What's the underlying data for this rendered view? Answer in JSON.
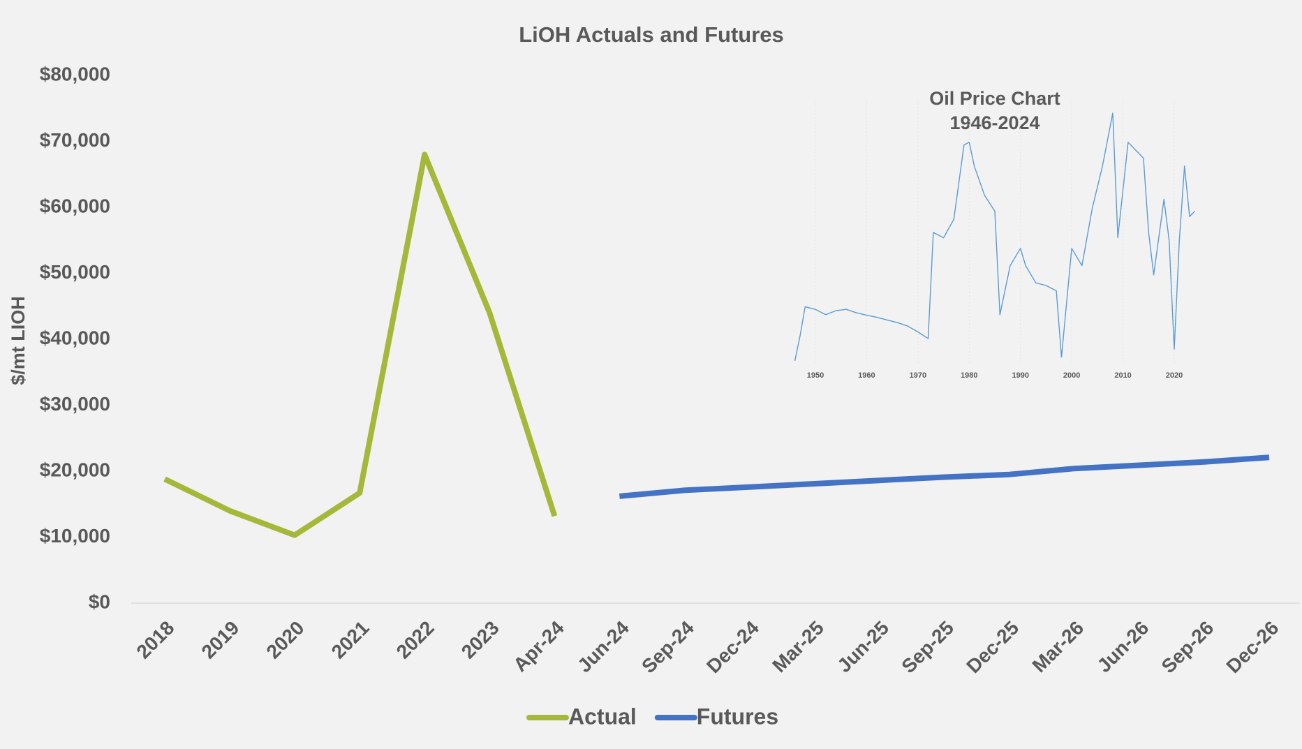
{
  "chart_data": [
    {
      "type": "line",
      "title": "LiOH Actuals and Futures",
      "y_label": "$/mt LIOH",
      "categories": [
        "2018",
        "2019",
        "2020",
        "2021",
        "2022",
        "2023",
        "Apr-24",
        "Jun-24",
        "Sep-24",
        "Dec-24",
        "Mar-25",
        "Jun-25",
        "Sep-25",
        "Dec-25",
        "Mar-26",
        "Jun-26",
        "Sep-26",
        "Dec-26"
      ],
      "series": [
        {
          "name": "Actual",
          "color": "#a5b83a",
          "values": [
            18800,
            14000,
            10300,
            16700,
            68000,
            44000,
            13200,
            null,
            null,
            null,
            null,
            null,
            null,
            null,
            null,
            null,
            null,
            null
          ]
        },
        {
          "name": "Futures",
          "color": "#4472c4",
          "values": [
            null,
            null,
            null,
            null,
            null,
            null,
            null,
            16200,
            17100,
            17600,
            18100,
            18600,
            19100,
            19500,
            20400,
            20900,
            21400,
            22100
          ]
        }
      ],
      "ylim": [
        0,
        80000
      ],
      "yticks": [
        {
          "value": 0,
          "label": "$0"
        },
        {
          "value": 10000,
          "label": "$10,000"
        },
        {
          "value": 20000,
          "label": "$20,000"
        },
        {
          "value": 30000,
          "label": "$30,000"
        },
        {
          "value": 40000,
          "label": "$40,000"
        },
        {
          "value": 50000,
          "label": "$50,000"
        },
        {
          "value": 60000,
          "label": "$60,000"
        },
        {
          "value": 70000,
          "label": "$70,000"
        },
        {
          "value": 80000,
          "label": "$80,000"
        }
      ],
      "legend": "bottom"
    },
    {
      "type": "line",
      "title": "Oil Price Chart",
      "subtitle": "1946-2024",
      "x": [
        1946,
        1947,
        1948,
        1950,
        1952,
        1954,
        1956,
        1958,
        1960,
        1962,
        1964,
        1966,
        1968,
        1970,
        1972,
        1973,
        1975,
        1977,
        1979,
        1980,
        1981,
        1983,
        1985,
        1986,
        1988,
        1990,
        1991,
        1993,
        1995,
        1997,
        1998,
        2000,
        2002,
        2004,
        2006,
        2008,
        2009,
        2011,
        2013,
        2014,
        2015,
        2016,
        2018,
        2019,
        2020,
        2021,
        2022,
        2023,
        2024
      ],
      "series": [
        {
          "color": "#5b9bd5",
          "values": [
            1.6,
            11,
            22,
            21,
            19,
            20.5,
            21,
            19.7,
            18.8,
            18,
            17,
            16,
            14.7,
            12.5,
            10,
            50,
            48,
            55,
            83,
            84,
            75,
            64,
            58,
            19,
            37.5,
            44,
            37.5,
            31,
            30,
            28,
            3,
            44,
            37.5,
            59,
            75,
            95,
            48,
            84,
            80,
            78,
            50,
            34,
            62.5,
            47,
            6,
            47,
            75,
            56,
            58
          ]
        }
      ],
      "xlim": [
        1945,
        2024
      ],
      "ylim": [
        0,
        100
      ],
      "xticks": [
        1950,
        1960,
        1970,
        1980,
        1990,
        2000,
        2010,
        2020
      ]
    }
  ]
}
